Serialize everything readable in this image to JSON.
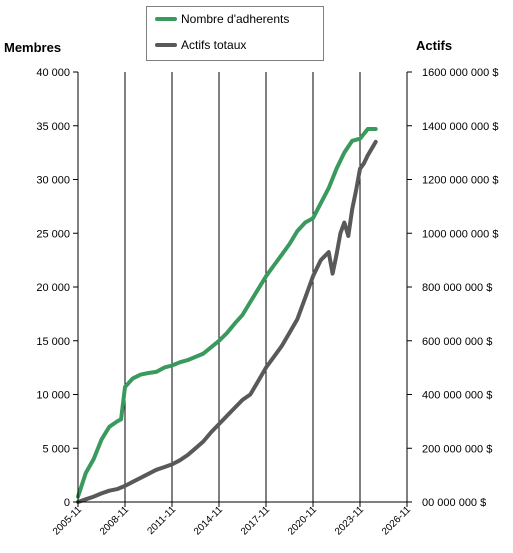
{
  "chart_data": {
    "type": "line",
    "title": "",
    "left_axis": {
      "title": "Membres",
      "ylim": [
        0,
        40000
      ],
      "ticks": [
        0,
        5000,
        10000,
        15000,
        20000,
        25000,
        30000,
        35000,
        40000
      ],
      "tick_labels": [
        "0",
        "5 000",
        "10 000",
        "15 000",
        "20 000",
        "25 000",
        "30 000",
        "35 000",
        "40 000"
      ]
    },
    "right_axis": {
      "title": "Actifs",
      "ylim": [
        0,
        1600000000
      ],
      "ticks": [
        0,
        200000000,
        400000000,
        600000000,
        800000000,
        1000000000,
        1200000000,
        1400000000,
        1600000000
      ],
      "tick_labels": [
        "00 000 000  $",
        "200 000 000  $",
        "400 000 000  $",
        "600 000 000  $",
        "800 000 000  $",
        "1000 000 000  $",
        "1200 000 000  $",
        "1400 000 000  $",
        "1600 000 000  $"
      ]
    },
    "x_axis": {
      "xlim": [
        "2005-11",
        "2026-11"
      ],
      "tick_labels": [
        "2005-11",
        "2008-11",
        "2011-11",
        "2014-11",
        "2017-11",
        "2020-11",
        "2023-11",
        "2026-11"
      ]
    },
    "grid": "vertical",
    "legend": "top-center",
    "series": [
      {
        "name": "Nombre d'adherents",
        "axis": "left",
        "color": "#3a9a5e",
        "x": [
          "2005-11",
          "2006-05",
          "2006-11",
          "2007-05",
          "2007-11",
          "2008-05",
          "2008-08",
          "2008-11",
          "2009-05",
          "2009-11",
          "2010-05",
          "2010-11",
          "2011-05",
          "2011-11",
          "2012-05",
          "2012-11",
          "2013-05",
          "2013-11",
          "2014-05",
          "2014-11",
          "2015-05",
          "2015-11",
          "2016-05",
          "2016-11",
          "2017-05",
          "2017-11",
          "2018-05",
          "2018-11",
          "2019-05",
          "2019-11",
          "2020-05",
          "2020-11",
          "2021-05",
          "2021-11",
          "2022-05",
          "2022-11",
          "2023-05",
          "2023-11",
          "2024-05",
          "2024-11"
        ],
        "values": [
          500,
          2700,
          4000,
          5800,
          7000,
          7500,
          7700,
          10700,
          11500,
          11850,
          12000,
          12100,
          12500,
          12700,
          13000,
          13200,
          13500,
          13800,
          14400,
          15000,
          15700,
          16600,
          17400,
          18600,
          19800,
          21000,
          22000,
          23000,
          24000,
          25200,
          26000,
          26400,
          27800,
          29200,
          31000,
          32500,
          33600,
          33800,
          34700,
          34700
        ]
      },
      {
        "name": "Actifs totaux",
        "axis": "right",
        "color": "#595959",
        "x": [
          "2005-11",
          "2006-05",
          "2006-11",
          "2007-05",
          "2007-11",
          "2008-05",
          "2008-11",
          "2009-05",
          "2009-11",
          "2010-05",
          "2010-11",
          "2011-05",
          "2011-11",
          "2012-05",
          "2012-11",
          "2013-05",
          "2013-11",
          "2014-05",
          "2014-11",
          "2015-05",
          "2015-11",
          "2016-05",
          "2016-11",
          "2017-05",
          "2017-11",
          "2018-05",
          "2018-11",
          "2019-05",
          "2019-11",
          "2020-05",
          "2020-11",
          "2021-05",
          "2021-11",
          "2022-02",
          "2022-05",
          "2022-08",
          "2022-11",
          "2023-02",
          "2023-05",
          "2023-08",
          "2023-11",
          "2024-02",
          "2024-05",
          "2024-11"
        ],
        "values": [
          0,
          10000000,
          20000000,
          32000000,
          42000000,
          48000000,
          60000000,
          75000000,
          90000000,
          105000000,
          120000000,
          130000000,
          140000000,
          155000000,
          175000000,
          200000000,
          225000000,
          260000000,
          290000000,
          320000000,
          350000000,
          380000000,
          400000000,
          450000000,
          500000000,
          540000000,
          580000000,
          630000000,
          680000000,
          760000000,
          840000000,
          900000000,
          930000000,
          850000000,
          920000000,
          1000000000,
          1040000000,
          990000000,
          1090000000,
          1160000000,
          1240000000,
          1260000000,
          1290000000,
          1340000000
        ]
      }
    ]
  }
}
